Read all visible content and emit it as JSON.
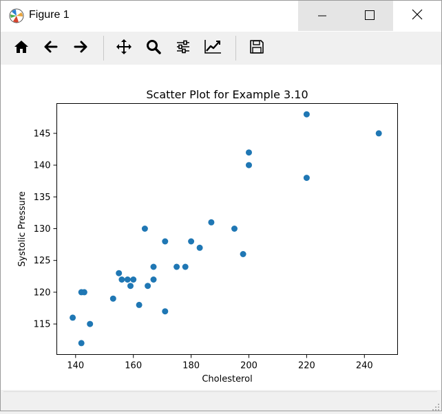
{
  "window": {
    "title": "Figure 1",
    "icons": [
      "matplotlib-app-icon",
      "minimize-icon",
      "maximize-icon",
      "close-icon"
    ]
  },
  "toolbar": {
    "tools": [
      "home-icon",
      "back-arrow-icon",
      "forward-arrow-icon",
      "pan-icon",
      "zoom-icon",
      "configure-subplots-icon",
      "edit-axes-icon",
      "save-icon"
    ]
  },
  "colors": {
    "marker": "#1f77b4",
    "canvas": "#ffffff",
    "chrome": "#f0f0f0"
  },
  "chart_data": {
    "type": "scatter",
    "title": "Scatter Plot for Example 3.10",
    "xlabel": "Cholesterol",
    "ylabel": "Systolic Pressure",
    "xlim": [
      133.5,
      251.5
    ],
    "ylim": [
      110.2,
      149.7
    ],
    "xticks": [
      140,
      160,
      180,
      200,
      220,
      240
    ],
    "yticks": [
      115,
      120,
      125,
      130,
      135,
      140,
      145
    ],
    "grid": false,
    "points": [
      {
        "x": 139,
        "y": 116
      },
      {
        "x": 142,
        "y": 112
      },
      {
        "x": 142,
        "y": 120
      },
      {
        "x": 143,
        "y": 120
      },
      {
        "x": 145,
        "y": 115
      },
      {
        "x": 153,
        "y": 119
      },
      {
        "x": 155,
        "y": 123
      },
      {
        "x": 156,
        "y": 122
      },
      {
        "x": 158,
        "y": 122
      },
      {
        "x": 159,
        "y": 121
      },
      {
        "x": 160,
        "y": 122
      },
      {
        "x": 162,
        "y": 118
      },
      {
        "x": 164,
        "y": 130
      },
      {
        "x": 165,
        "y": 121
      },
      {
        "x": 167,
        "y": 124
      },
      {
        "x": 167,
        "y": 122
      },
      {
        "x": 171,
        "y": 128
      },
      {
        "x": 171,
        "y": 117
      },
      {
        "x": 175,
        "y": 124
      },
      {
        "x": 178,
        "y": 124
      },
      {
        "x": 180,
        "y": 128
      },
      {
        "x": 183,
        "y": 127
      },
      {
        "x": 187,
        "y": 131
      },
      {
        "x": 195,
        "y": 130
      },
      {
        "x": 198,
        "y": 126
      },
      {
        "x": 200,
        "y": 142
      },
      {
        "x": 200,
        "y": 140
      },
      {
        "x": 220,
        "y": 148
      },
      {
        "x": 220,
        "y": 138
      },
      {
        "x": 245,
        "y": 145
      }
    ]
  }
}
